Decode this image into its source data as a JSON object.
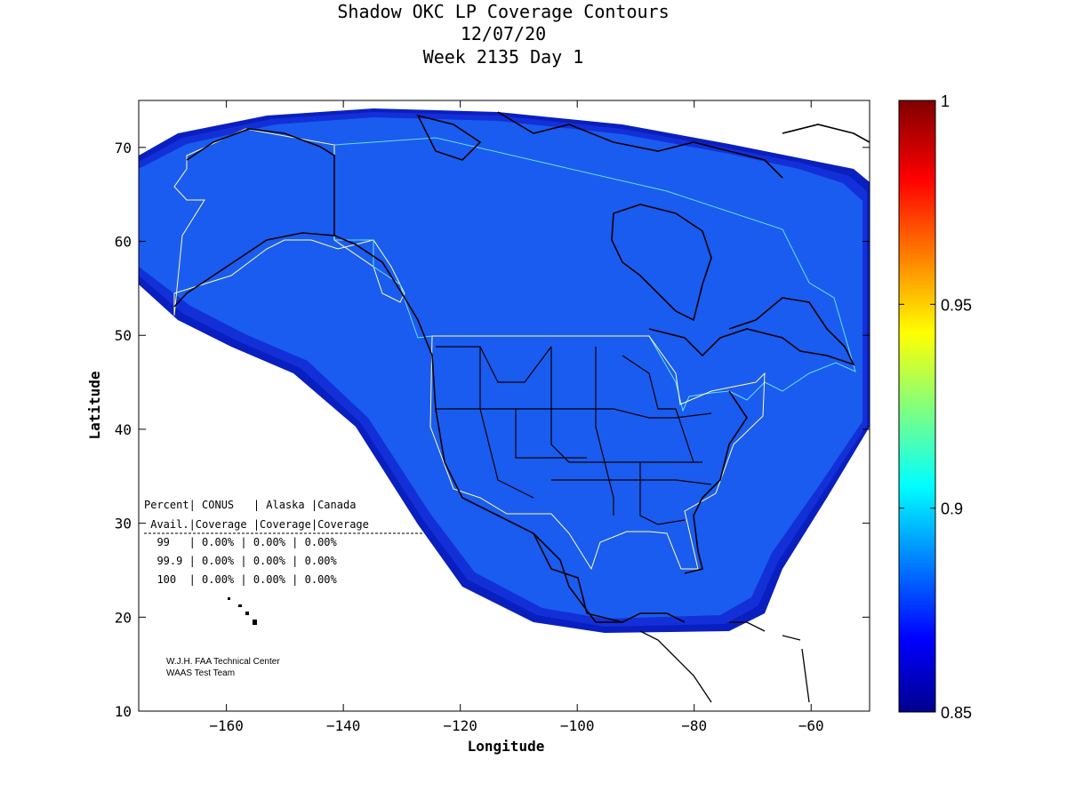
{
  "title": {
    "line1": "Shadow OKC LP Coverage Contours",
    "line2": "12/07/20",
    "line3": "Week 2135 Day 1"
  },
  "axes": {
    "xlabel": "Longitude",
    "ylabel": "Latitude",
    "xlim": [
      -175,
      -50
    ],
    "ylim": [
      10,
      75
    ],
    "xticks": [
      -160,
      -140,
      -120,
      -100,
      -80,
      -60
    ],
    "yticks": [
      10,
      20,
      30,
      40,
      50,
      60,
      70
    ],
    "xtick_labels": [
      "−160",
      "−140",
      "−120",
      "−100",
      "−80",
      "−60"
    ],
    "ytick_labels": [
      "10",
      "20",
      "30",
      "40",
      "50",
      "60",
      "70"
    ]
  },
  "colorbar": {
    "range": [
      0.85,
      1
    ],
    "ticks": [
      0.85,
      0.9,
      0.95,
      1
    ],
    "tick_labels": [
      "0.85",
      "0.9",
      "0.95",
      "1"
    ],
    "colormap": "jet"
  },
  "coverage_table": {
    "header1": "Percent| CONUS   | Alaska |Canada",
    "header2": " Avail.|Coverage |Coverage|Coverage",
    "rows": [
      "  99   | 0.00% | 0.00% | 0.00%",
      "  99.9 | 0.00% | 0.00% | 0.00%",
      "  100  | 0.00% | 0.00% | 0.00%"
    ]
  },
  "credit": {
    "line1": "W.J.H. FAA Technical Center",
    "line2": "WAAS Test Team"
  },
  "colors": {
    "coverage_fill": "#1a5cf0",
    "coverage_edge_1": "#1845e8",
    "coverage_edge_2": "#1330d8",
    "coverage_edge_3": "#0a1fc0",
    "service_outline": "#ffffaa",
    "service_outline_cyan": "#66e0ff",
    "coastline": "#000000"
  }
}
